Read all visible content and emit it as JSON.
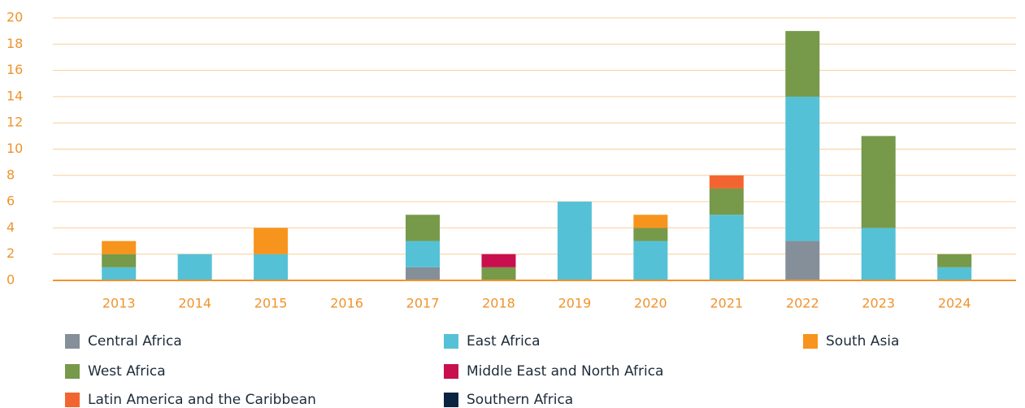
{
  "chart_data": {
    "type": "stacked_bar",
    "categories": [
      "2013",
      "2014",
      "2015",
      "2016",
      "2017",
      "2018",
      "2019",
      "2020",
      "2021",
      "2022",
      "2023",
      "2024"
    ],
    "series": [
      {
        "name": "Central Africa",
        "color": "#858f99",
        "values": [
          0,
          0,
          0,
          0,
          1,
          0,
          0,
          0,
          0,
          3,
          0,
          0
        ]
      },
      {
        "name": "East Africa",
        "color": "#55c1d6",
        "values": [
          1,
          2,
          2,
          0,
          2,
          0,
          6,
          3,
          5,
          11,
          4,
          1
        ]
      },
      {
        "name": "West Africa",
        "color": "#76994a",
        "values": [
          1,
          0,
          0,
          0,
          2,
          1,
          0,
          1,
          2,
          5,
          7,
          1
        ]
      },
      {
        "name": "Middle East and North Africa",
        "color": "#c8104f",
        "values": [
          0,
          0,
          0,
          0,
          0,
          1,
          0,
          0,
          0,
          0,
          0,
          0
        ]
      },
      {
        "name": "Latin America and the Caribbean",
        "color": "#f26531",
        "values": [
          0,
          0,
          0,
          0,
          0,
          0,
          0,
          0,
          1,
          0,
          0,
          0
        ]
      },
      {
        "name": "South Asia",
        "color": "#f7941d",
        "values": [
          1,
          0,
          2,
          0,
          0,
          0,
          0,
          1,
          0,
          0,
          0,
          0
        ]
      },
      {
        "name": "Southern Africa",
        "color": "#0a2340",
        "values": [
          0,
          0,
          0,
          0,
          0,
          0,
          0,
          0,
          0,
          0,
          0,
          0
        ]
      }
    ],
    "ylim": [
      0,
      20
    ],
    "yticks": [
      0,
      2,
      4,
      6,
      8,
      10,
      12,
      14,
      16,
      18,
      20
    ],
    "grid": true
  }
}
